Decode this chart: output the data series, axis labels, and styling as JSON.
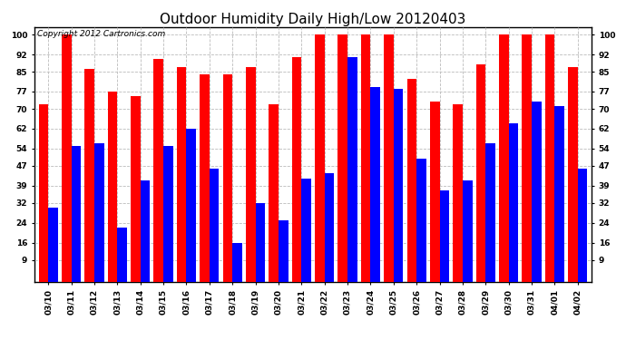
{
  "title": "Outdoor Humidity Daily High/Low 20120403",
  "copyright_text": "Copyright 2012 Cartronics.com",
  "dates": [
    "03/10",
    "03/11",
    "03/12",
    "03/13",
    "03/14",
    "03/15",
    "03/16",
    "03/17",
    "03/18",
    "03/19",
    "03/20",
    "03/21",
    "03/22",
    "03/23",
    "03/24",
    "03/25",
    "03/26",
    "03/27",
    "03/28",
    "03/29",
    "03/30",
    "03/31",
    "04/01",
    "04/02"
  ],
  "highs": [
    72,
    100,
    86,
    77,
    75,
    90,
    87,
    84,
    84,
    87,
    72,
    91,
    100,
    100,
    100,
    100,
    82,
    73,
    72,
    88,
    100,
    100,
    100,
    87
  ],
  "lows": [
    30,
    55,
    56,
    22,
    41,
    55,
    62,
    46,
    16,
    32,
    25,
    42,
    44,
    91,
    79,
    78,
    50,
    37,
    41,
    56,
    64,
    73,
    71,
    46
  ],
  "bar_color_high": "#ff0000",
  "bar_color_low": "#0000ff",
  "background_color": "#ffffff",
  "plot_background": "#ffffff",
  "yticks": [
    9,
    16,
    24,
    32,
    39,
    47,
    54,
    62,
    70,
    77,
    85,
    92,
    100
  ],
  "ymin": 0,
  "ymax": 103,
  "grid_color": "#bbbbbb",
  "title_fontsize": 11,
  "tick_fontsize": 6.5,
  "copyright_fontsize": 6.5
}
